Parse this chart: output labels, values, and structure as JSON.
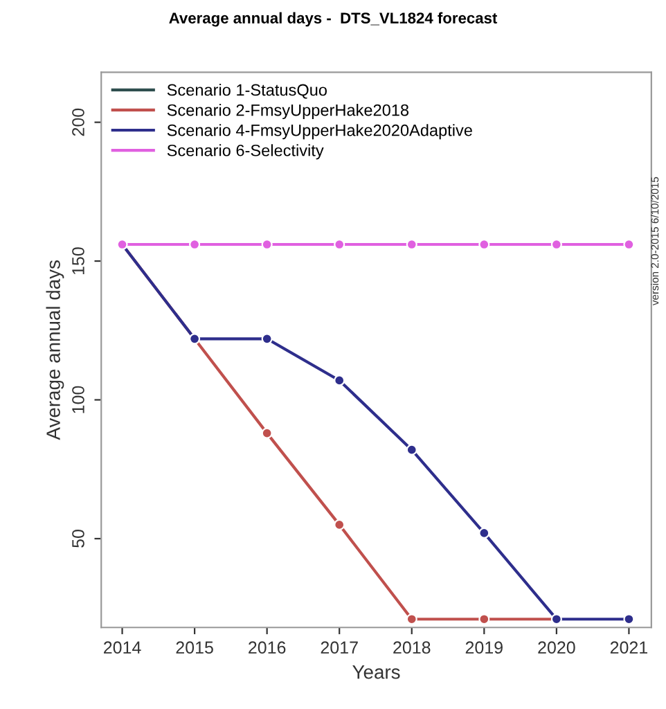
{
  "chart_data": {
    "type": "line",
    "title": "Average annual days -  DTS_VL1824 forecast",
    "xlabel": "Years",
    "ylabel": "Average annual days",
    "x": [
      2014,
      2015,
      2016,
      2017,
      2018,
      2019,
      2020,
      2021
    ],
    "series": [
      {
        "name": "Scenario 1-StatusQuo",
        "color": "#2f4f4f",
        "values": [
          null,
          null,
          null,
          null,
          null,
          null,
          null,
          null
        ]
      },
      {
        "name": "Scenario 2-FmsyUpperHake2018",
        "color": "#c0504d",
        "values": [
          156,
          122,
          88,
          55,
          21,
          21,
          21,
          null
        ]
      },
      {
        "name": "Scenario 4-FmsyUpperHake2020Adaptive",
        "color": "#2e2e8c",
        "values": [
          156,
          122,
          122,
          107,
          82,
          52,
          21,
          21
        ]
      },
      {
        "name": "Scenario 6-Selectivity",
        "color": "#e060e0",
        "values": [
          156,
          156,
          156,
          156,
          156,
          156,
          156,
          156
        ]
      }
    ],
    "xlim": [
      2013.71,
      2021.31
    ],
    "ylim": [
      18,
      218
    ],
    "xticks": [
      2014,
      2015,
      2016,
      2017,
      2018,
      2019,
      2020,
      2021
    ],
    "yticks": [
      50,
      100,
      150,
      200
    ],
    "marker": "circle",
    "line_style": "solid",
    "legend": "top left",
    "annotations": [
      "version 2.0-2015 6/10/2015"
    ]
  }
}
